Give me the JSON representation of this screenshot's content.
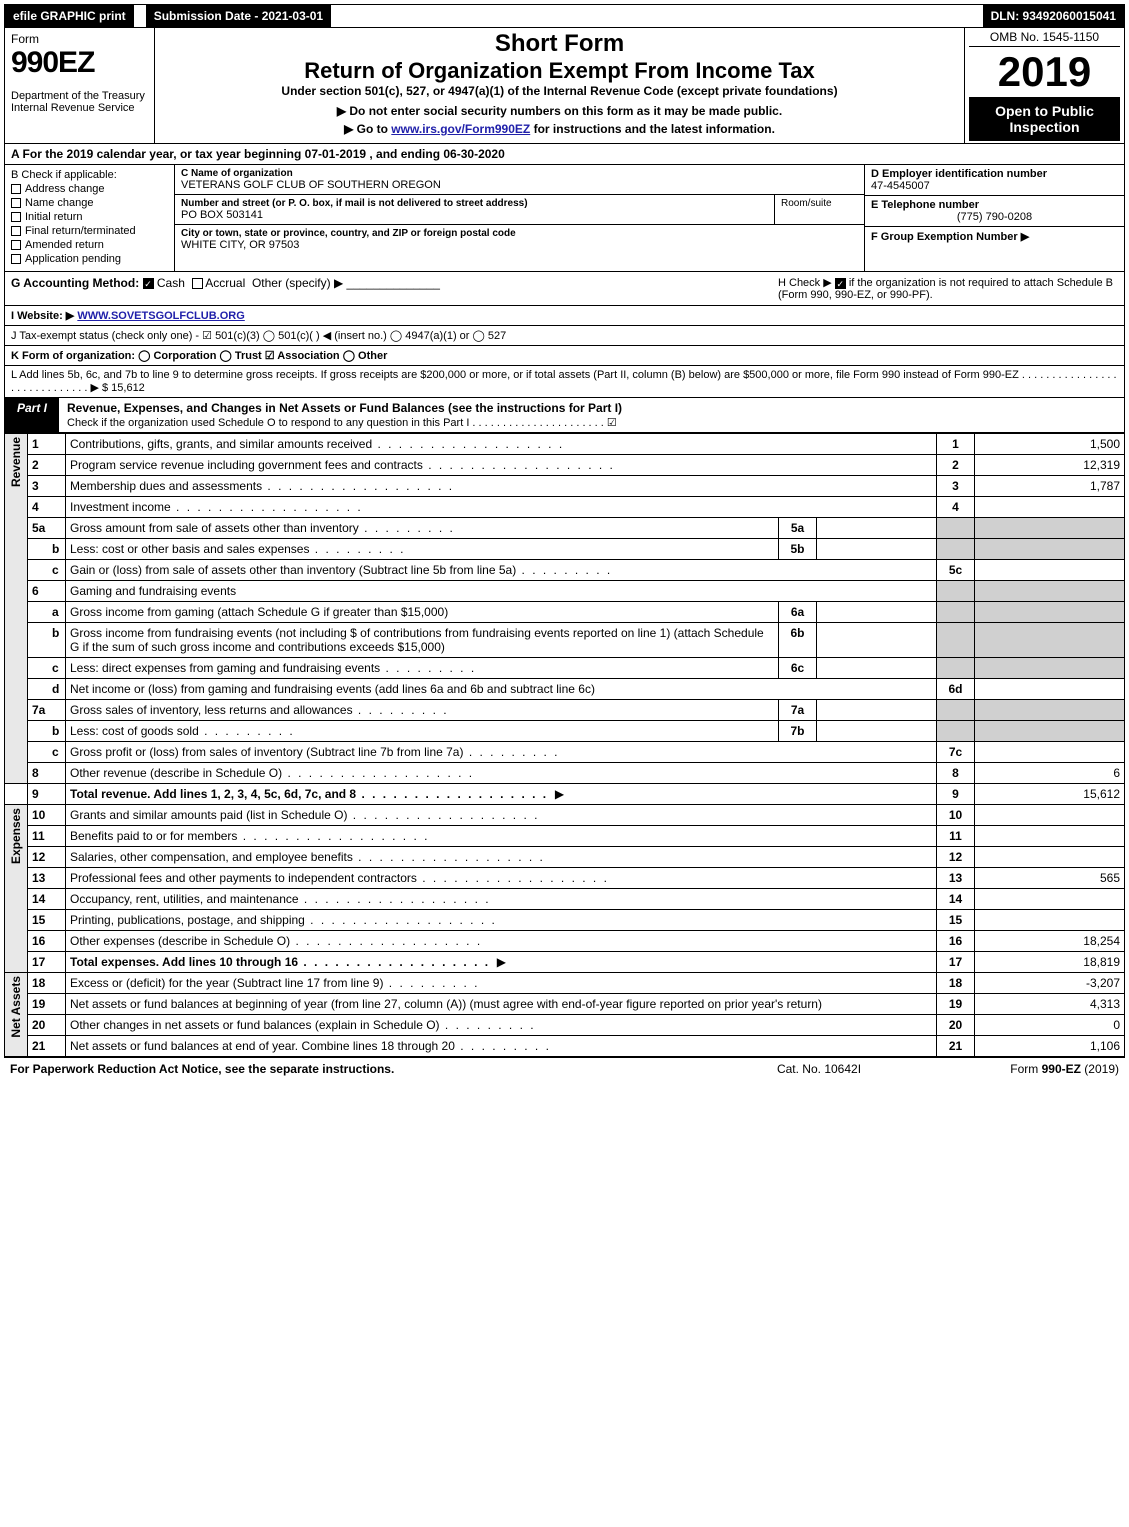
{
  "topbar": {
    "efile": "efile GRAPHIC print",
    "sub_date": "Submission Date - 2021-03-01",
    "dln": "DLN: 93492060015041"
  },
  "header": {
    "form_word": "Form",
    "form_num": "990EZ",
    "dept": "Department of the Treasury",
    "irs": "Internal Revenue Service",
    "short_form": "Short Form",
    "title": "Return of Organization Exempt From Income Tax",
    "under": "Under section 501(c), 527, or 4947(a)(1) of the Internal Revenue Code (except private foundations)",
    "warn": "▶ Do not enter social security numbers on this form as it may be made public.",
    "goto_pre": "▶ Go to ",
    "goto_link": "www.irs.gov/Form990EZ",
    "goto_post": " for instructions and the latest information.",
    "omb": "OMB No. 1545-1150",
    "year": "2019",
    "open": "Open to Public Inspection"
  },
  "period": "A For the 2019 calendar year, or tax year beginning 07-01-2019 , and ending 06-30-2020",
  "sectionB": {
    "b_label": "B Check if applicable:",
    "checks": [
      "Address change",
      "Name change",
      "Initial return",
      "Final return/terminated",
      "Amended return",
      "Application pending"
    ],
    "c_label": "C Name of organization",
    "c_val": "VETERANS GOLF CLUB OF SOUTHERN OREGON",
    "addr_label": "Number and street (or P. O. box, if mail is not delivered to street address)",
    "addr_val": "PO BOX 503141",
    "room": "Room/suite",
    "city_label": "City or town, state or province, country, and ZIP or foreign postal code",
    "city_val": "WHITE CITY, OR  97503",
    "d_label": "D Employer identification number",
    "d_val": "47-4545007",
    "e_label": "E Telephone number",
    "e_val": "(775) 790-0208",
    "f_label": "F Group Exemption Number  ▶"
  },
  "rowG": {
    "g_label": "G Accounting Method:",
    "g_cash": "Cash",
    "g_accrual": "Accrual",
    "g_other": "Other (specify) ▶",
    "h_text1": "H  Check ▶",
    "h_text2": "if the organization is not required to attach Schedule B (Form 990, 990-EZ, or 990-PF)."
  },
  "rowI": {
    "label": "I Website: ▶",
    "val": "WWW.SOVETSGOLFCLUB.ORG"
  },
  "rowJ": "J Tax-exempt status (check only one) -  ☑ 501(c)(3)  ◯ 501(c)( )  ◀ (insert no.)  ◯ 4947(a)(1) or  ◯ 527",
  "rowK": "K Form of organization:   ◯ Corporation   ◯ Trust   ☑ Association   ◯ Other",
  "rowL": {
    "text": "L Add lines 5b, 6c, and 7b to line 9 to determine gross receipts. If gross receipts are $200,000 or more, or if total assets (Part II, column (B) below) are $500,000 or more, file Form 990 instead of Form 990-EZ  .  .  .  .  .  .  .  .  .  .  .  .  .  .  .  .  .  .  .  .  .  .  .  .  .  .  .  .  .  ▶",
    "val": "$ 15,612"
  },
  "part1": {
    "tag": "Part I",
    "title": "Revenue, Expenses, and Changes in Net Assets or Fund Balances (see the instructions for Part I)",
    "sub": "Check if the organization used Schedule O to respond to any question in this Part I  .  .  .  .  .  .  .  .  .  .  .  .  .  .  .  .  .  .  .  .  .  .  ☑"
  },
  "side": {
    "rev": "Revenue",
    "exp": "Expenses",
    "na": "Net Assets"
  },
  "lines": {
    "1": {
      "n": "1",
      "d": "Contributions, gifts, grants, and similar amounts received",
      "v": "1,500"
    },
    "2": {
      "n": "2",
      "d": "Program service revenue including government fees and contracts",
      "v": "12,319"
    },
    "3": {
      "n": "3",
      "d": "Membership dues and assessments",
      "v": "1,787"
    },
    "4": {
      "n": "4",
      "d": "Investment income",
      "v": ""
    },
    "5a": {
      "n": "5a",
      "d": "Gross amount from sale of assets other than inventory",
      "m": "5a"
    },
    "5b": {
      "n": "b",
      "d": "Less: cost or other basis and sales expenses",
      "m": "5b"
    },
    "5c": {
      "n": "c",
      "d": "Gain or (loss) from sale of assets other than inventory (Subtract line 5b from line 5a)",
      "cn": "5c",
      "v": ""
    },
    "6": {
      "n": "6",
      "d": "Gaming and fundraising events"
    },
    "6a": {
      "n": "a",
      "d": "Gross income from gaming (attach Schedule G if greater than $15,000)",
      "m": "6a"
    },
    "6b": {
      "n": "b",
      "d": "Gross income from fundraising events (not including $                    of contributions from fundraising events reported on line 1) (attach Schedule G if the sum of such gross income and contributions exceeds $15,000)",
      "m": "6b"
    },
    "6c": {
      "n": "c",
      "d": "Less: direct expenses from gaming and fundraising events",
      "m": "6c"
    },
    "6d": {
      "n": "d",
      "d": "Net income or (loss) from gaming and fundraising events (add lines 6a and 6b and subtract line 6c)",
      "cn": "6d",
      "v": ""
    },
    "7a": {
      "n": "7a",
      "d": "Gross sales of inventory, less returns and allowances",
      "m": "7a"
    },
    "7b": {
      "n": "b",
      "d": "Less: cost of goods sold",
      "m": "7b"
    },
    "7c": {
      "n": "c",
      "d": "Gross profit or (loss) from sales of inventory (Subtract line 7b from line 7a)",
      "cn": "7c",
      "v": ""
    },
    "8": {
      "n": "8",
      "d": "Other revenue (describe in Schedule O)",
      "v": "6"
    },
    "9": {
      "n": "9",
      "d": "Total revenue. Add lines 1, 2, 3, 4, 5c, 6d, 7c, and 8",
      "v": "15,612",
      "arrow": "▶",
      "bold": true
    },
    "10": {
      "n": "10",
      "d": "Grants and similar amounts paid (list in Schedule O)",
      "v": ""
    },
    "11": {
      "n": "11",
      "d": "Benefits paid to or for members",
      "v": ""
    },
    "12": {
      "n": "12",
      "d": "Salaries, other compensation, and employee benefits",
      "v": ""
    },
    "13": {
      "n": "13",
      "d": "Professional fees and other payments to independent contractors",
      "v": "565"
    },
    "14": {
      "n": "14",
      "d": "Occupancy, rent, utilities, and maintenance",
      "v": ""
    },
    "15": {
      "n": "15",
      "d": "Printing, publications, postage, and shipping",
      "v": ""
    },
    "16": {
      "n": "16",
      "d": "Other expenses (describe in Schedule O)",
      "v": "18,254"
    },
    "17": {
      "n": "17",
      "d": "Total expenses. Add lines 10 through 16",
      "v": "18,819",
      "arrow": "▶",
      "bold": true
    },
    "18": {
      "n": "18",
      "d": "Excess or (deficit) for the year (Subtract line 17 from line 9)",
      "v": "-3,207"
    },
    "19": {
      "n": "19",
      "d": "Net assets or fund balances at beginning of year (from line 27, column (A)) (must agree with end-of-year figure reported on prior year's return)",
      "v": "4,313"
    },
    "20": {
      "n": "20",
      "d": "Other changes in net assets or fund balances (explain in Schedule O)",
      "v": "0"
    },
    "21": {
      "n": "21",
      "d": "Net assets or fund balances at end of year. Combine lines 18 through 20",
      "v": "1,106"
    }
  },
  "footer": {
    "l": "For Paperwork Reduction Act Notice, see the separate instructions.",
    "c": "Cat. No. 10642I",
    "r": "Form 990-EZ (2019)"
  }
}
